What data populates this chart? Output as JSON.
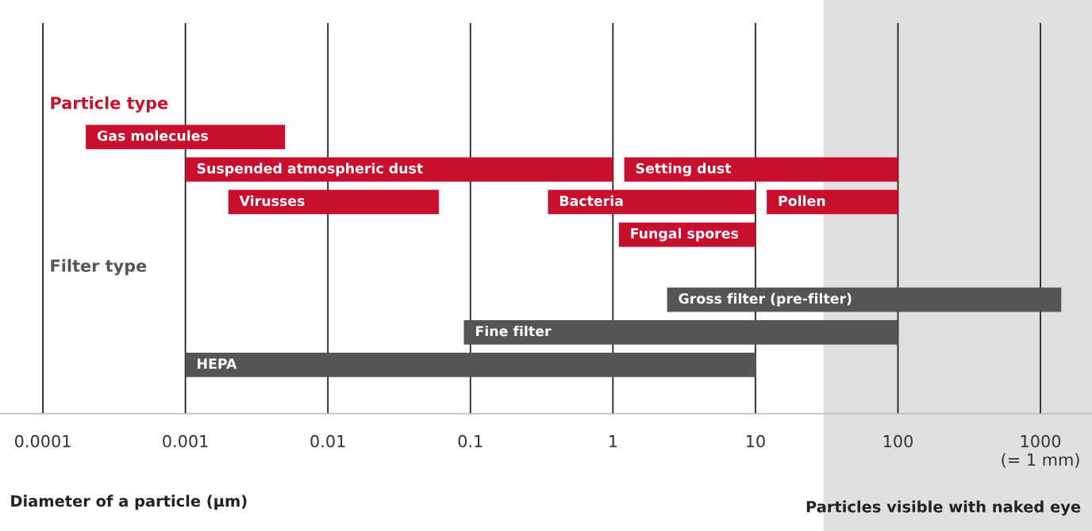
{
  "chart_data": {
    "type": "bar",
    "orientation": "horizontal",
    "log": "x",
    "xlabel": "Diameter of a particle (µm)",
    "categories": [
      null,
      null,
      null,
      null,
      null,
      null,
      null,
      null,
      null,
      null,
      null,
      null
    ],
    "series": [
      {
        "name": "Particle type",
        "color": "#c8102e",
        "base": [
          null,
          null,
          null,
          0.0002,
          0.001,
          0.002,
          1.1,
          null,
          null,
          null,
          null,
          null
        ],
        "values": [
          null,
          null,
          null,
          0.0048,
          0.999,
          0.058,
          8.9,
          null,
          null,
          null,
          null,
          null
        ],
        "value_labels": [
          null,
          null,
          null,
          "Gas molecules",
          "Suspended atmospheric dust",
          "Virusses",
          "Fungal spores",
          null,
          null,
          null,
          null,
          null
        ]
      },
      {
        "color": "#c8102e",
        "base": [
          null,
          null,
          null,
          null,
          1.2,
          0.35,
          null,
          null,
          null,
          null,
          null,
          null
        ],
        "values": [
          null,
          null,
          null,
          null,
          98.8,
          9.65,
          null,
          null,
          null,
          null,
          null,
          null
        ],
        "value_labels": [
          null,
          null,
          null,
          null,
          "Setting dust",
          "Bacteria",
          null,
          null,
          null,
          null,
          null,
          null
        ]
      },
      {
        "color": "#c8102e",
        "base": [
          null,
          null,
          null,
          null,
          null,
          12,
          null,
          null,
          null,
          null,
          null,
          null
        ],
        "values": [
          null,
          null,
          null,
          null,
          null,
          88,
          null,
          null,
          null,
          null,
          null,
          null
        ],
        "value_labels": [
          null,
          null,
          null,
          null,
          null,
          "Pollen",
          null,
          null,
          null,
          null,
          null,
          null
        ]
      },
      {
        "name": "Filter type",
        "color": "#555555",
        "base": [
          null,
          null,
          null,
          null,
          null,
          null,
          null,
          null,
          2.4,
          0.09,
          0.001,
          null
        ],
        "values": [
          null,
          null,
          null,
          null,
          null,
          null,
          null,
          null,
          1397.6,
          99.91,
          9.999,
          null
        ],
        "value_labels": [
          null,
          null,
          null,
          null,
          null,
          null,
          null,
          null,
          "Gross filter (pre-filter)",
          "Fine filter",
          "HEPA",
          null
        ]
      }
    ],
    "xlim": [
      5e-05,
      2300
    ],
    "xticks": [
      0.0001,
      0.001,
      0.01,
      0.1,
      1,
      10,
      100,
      {
        "value": 1000,
        "label": "1000\n(= 1 mm)"
      }
    ],
    "grid": "x",
    "bands": [
      {
        "axis": "x",
        "from": 30,
        "to": 2300,
        "label": "Particles visible with naked eye",
        "color": "#e0e0e0"
      }
    ]
  }
}
